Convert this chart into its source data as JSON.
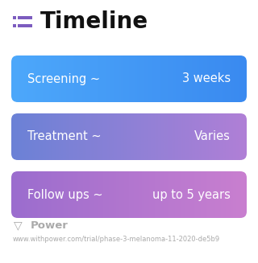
{
  "title": "Timeline",
  "title_fontsize": 20,
  "title_fontweight": "bold",
  "title_color": "#111111",
  "icon_color": "#7c5cbf",
  "background_color": "#ffffff",
  "rows": [
    {
      "label": "Screening ~",
      "value": "3 weeks",
      "color_left": "#4da8fb",
      "color_right": "#3a8af0"
    },
    {
      "label": "Treatment ~",
      "value": "Varies",
      "color_left": "#6b82d6",
      "color_right": "#b07fd6"
    },
    {
      "label": "Follow ups ~",
      "value": "up to 5 years",
      "color_left": "#9b6dce",
      "color_right": "#c97fd0"
    }
  ],
  "row_text_color": "#ffffff",
  "row_label_fontsize": 10.5,
  "row_value_fontsize": 10.5,
  "footer_text": "Power",
  "footer_url": "www.withpower.com/trial/phase-3-melanoma-11-2020-de5b9",
  "footer_color": "#aaaaaa",
  "footer_fontsize": 6.0
}
